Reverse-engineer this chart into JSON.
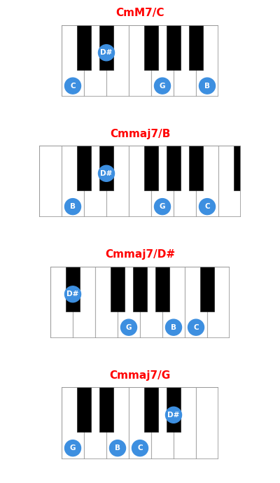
{
  "title_color": "#ff0000",
  "title_fontsize": 11,
  "background_color": "#ffffff",
  "key_color_white": "#ffffff",
  "key_color_black": "#000000",
  "key_stroke": "#aaaaaa",
  "note_color": "#3d8fe0",
  "note_text_color": "#ffffff",
  "note_fontsize": 7.5,
  "fig_width": 4.0,
  "fig_height": 6.9,
  "WW": 1.0,
  "WH": 3.2,
  "BW": 0.62,
  "BH": 2.0,
  "NR": 0.36,
  "chord_configs": [
    {
      "title": "CmM7/C",
      "n_white": 7,
      "black_gaps": [
        0,
        1,
        3,
        4,
        5
      ],
      "note_positions": [
        {
          "label": "C",
          "is_black": false,
          "idx": 0
        },
        {
          "label": "D#",
          "is_black": true,
          "idx": 1
        },
        {
          "label": "G",
          "is_black": false,
          "idx": 4
        },
        {
          "label": "B",
          "is_black": false,
          "idx": 6
        }
      ]
    },
    {
      "title": "Cmmaj7/B",
      "n_white": 9,
      "black_gaps": [
        1,
        2,
        4,
        5,
        6,
        8
      ],
      "note_positions": [
        {
          "label": "B",
          "is_black": false,
          "idx": 1
        },
        {
          "label": "D#",
          "is_black": true,
          "idx": 2
        },
        {
          "label": "G",
          "is_black": false,
          "idx": 5
        },
        {
          "label": "C",
          "is_black": false,
          "idx": 7
        }
      ]
    },
    {
      "title": "Cmmaj7/D#",
      "n_white": 8,
      "black_gaps": [
        0,
        2,
        3,
        4,
        6
      ],
      "note_positions": [
        {
          "label": "D#",
          "is_black": true,
          "idx": 0
        },
        {
          "label": "G",
          "is_black": false,
          "idx": 3
        },
        {
          "label": "B",
          "is_black": false,
          "idx": 5
        },
        {
          "label": "C",
          "is_black": false,
          "idx": 6
        }
      ]
    },
    {
      "title": "Cmmaj7/G",
      "n_white": 7,
      "black_gaps": [
        0,
        1,
        3,
        4
      ],
      "note_positions": [
        {
          "label": "G",
          "is_black": false,
          "idx": 0
        },
        {
          "label": "B",
          "is_black": false,
          "idx": 2
        },
        {
          "label": "C",
          "is_black": false,
          "idx": 3
        },
        {
          "label": "D#",
          "is_black": true,
          "idx": 4
        }
      ]
    }
  ]
}
